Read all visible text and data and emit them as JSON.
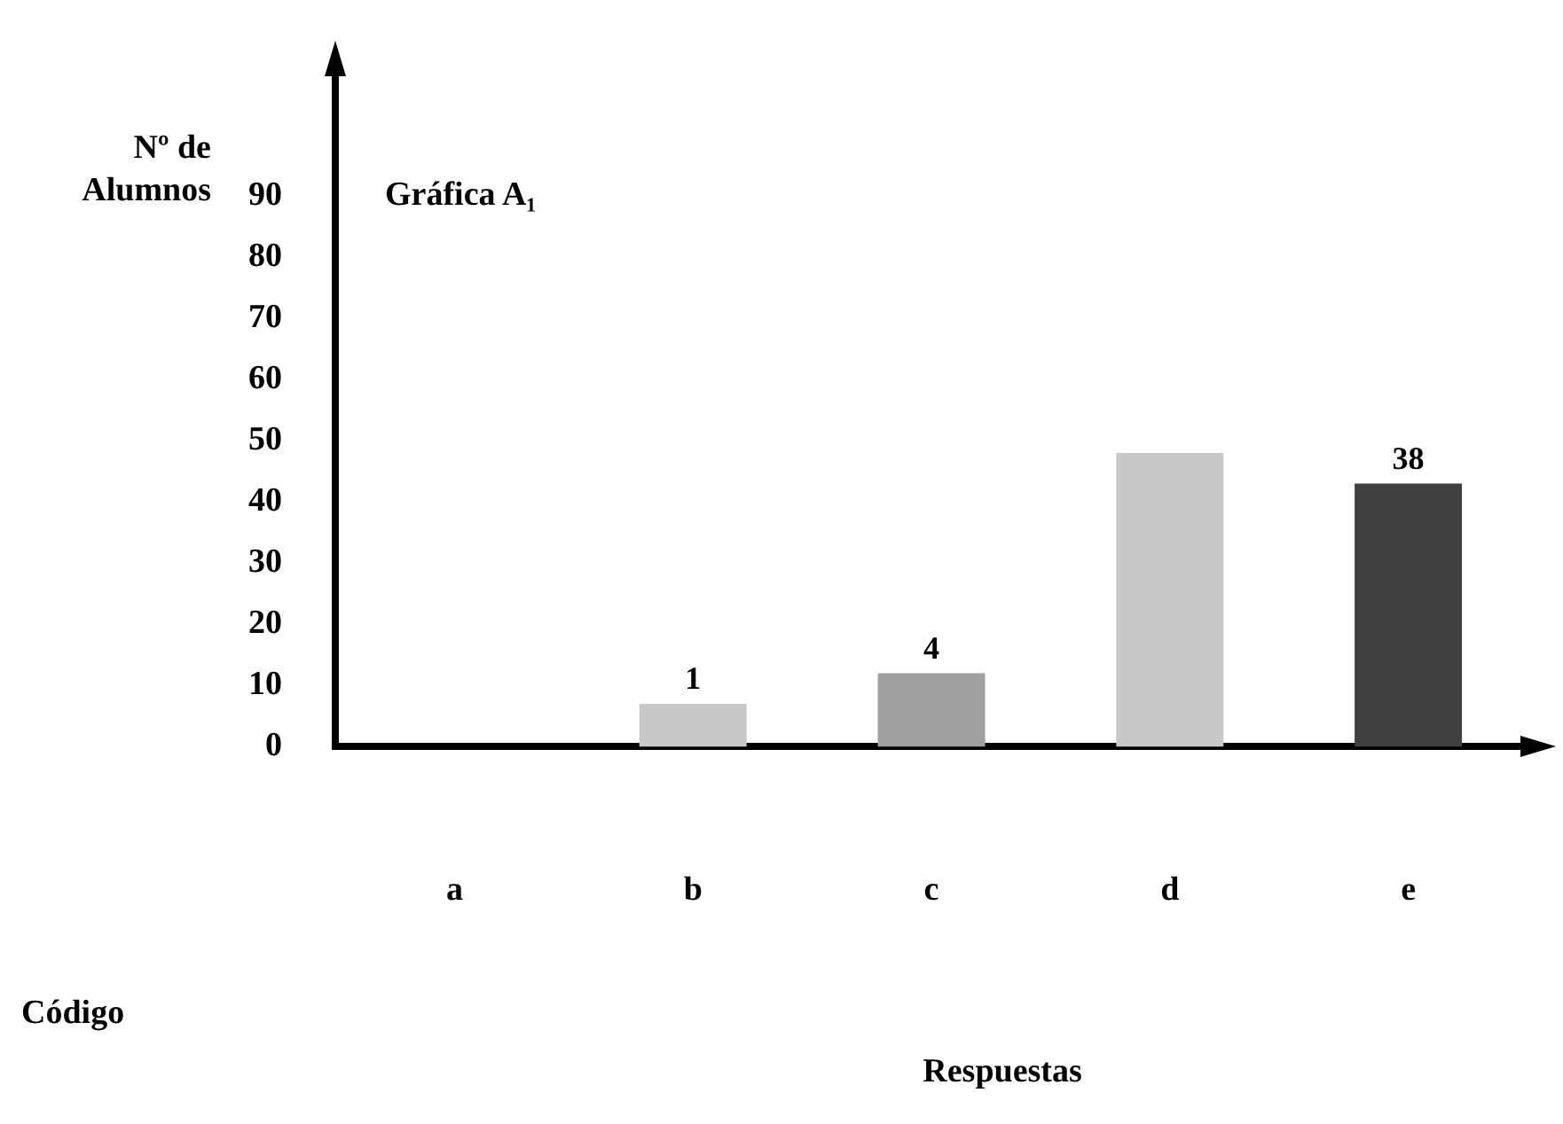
{
  "chart_data": {
    "type": "bar",
    "title": "Gráfica A₁",
    "xlabel": "Respuestas",
    "ylabel": "Nº de Alumnos",
    "annotations": [
      "Código",
      {
        "text": "1",
        "x": "b",
        "y": 7
      },
      {
        "text": "4",
        "x": "c",
        "y": 12
      },
      {
        "text": "38",
        "x": "e",
        "y": 43
      }
    ],
    "categories": [
      "a",
      "b",
      "c",
      "d",
      "e"
    ],
    "values": [
      0,
      7,
      12,
      48,
      43
    ],
    "colors": [
      "#ffffff",
      "#c8c8c8",
      "#a0a0a0",
      "#c8c8c8",
      "#404040"
    ],
    "ylim": [
      0,
      110
    ],
    "yticks": [
      0,
      10,
      20,
      30,
      40,
      50,
      60,
      70,
      80,
      90
    ],
    "grid": false,
    "legend": false
  }
}
